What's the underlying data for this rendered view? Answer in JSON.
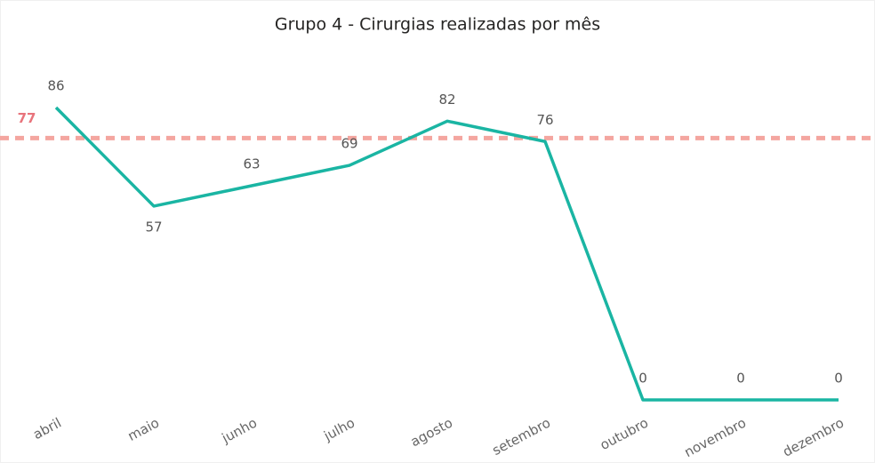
{
  "chart_data": {
    "type": "line",
    "title": "Grupo 4 - Cirurgias realizadas por mês",
    "categories": [
      "abril",
      "maio",
      "junho",
      "julho",
      "agosto",
      "setembro",
      "outubro",
      "novembro",
      "dezembro"
    ],
    "values": [
      86,
      57,
      63,
      69,
      82,
      76,
      0,
      0,
      0
    ],
    "color": "#1ab5a3",
    "reference_line": {
      "value": 77,
      "color": "#f4a6a0",
      "label_color": "#e8747c"
    }
  }
}
